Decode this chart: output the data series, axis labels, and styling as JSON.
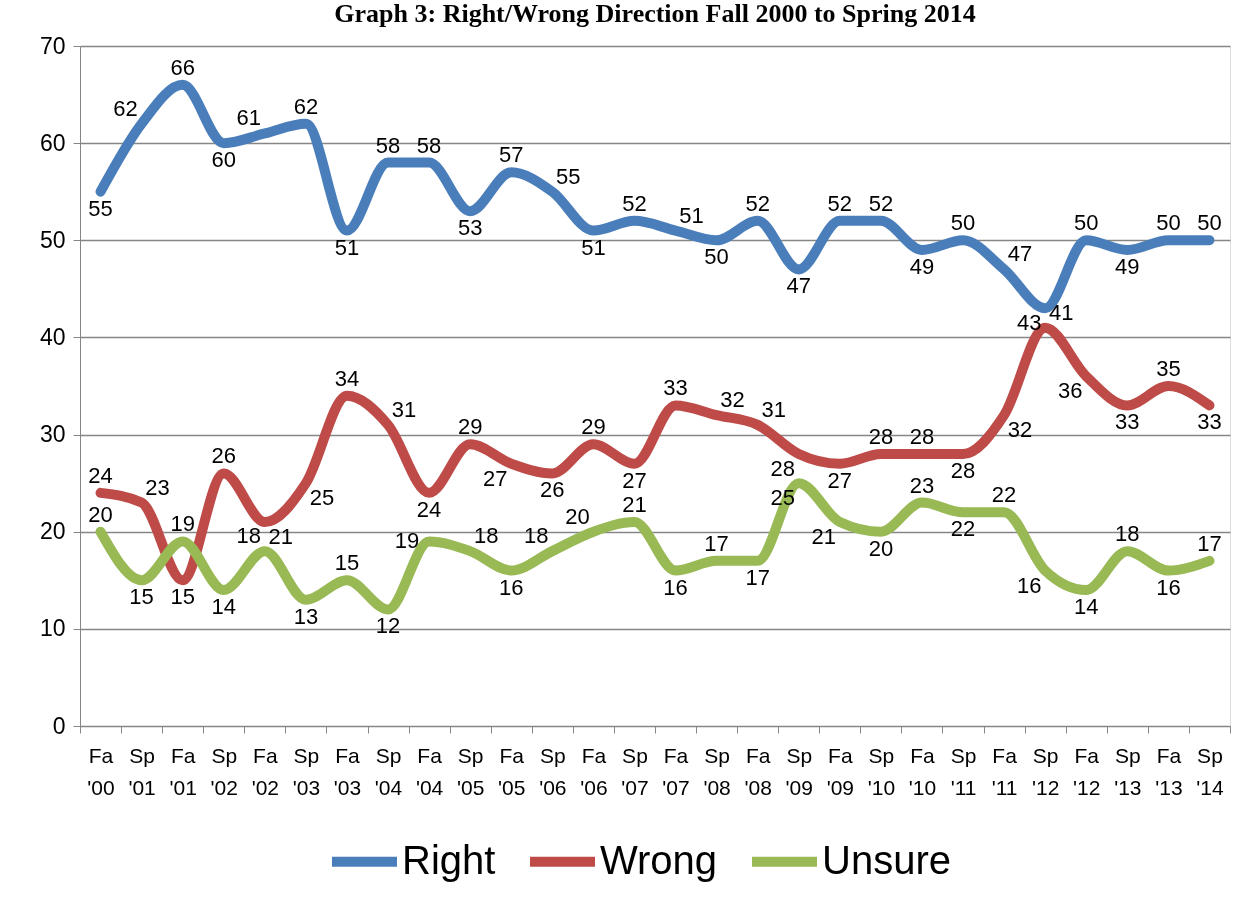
{
  "chart_data": {
    "type": "line",
    "title": "Graph 3: Right/Wrong Direction Fall 2000 to Spring 2014",
    "categories": [
      "Fa '00",
      "Sp '01",
      "Fa '01",
      "Sp '02",
      "Fa '02",
      "Sp '03",
      "Fa '03",
      "Sp '04",
      "Fa '04",
      "Sp '05",
      "Fa '05",
      "Sp '06",
      "Fa '06",
      "Sp '07",
      "Fa '07",
      "Sp '08",
      "Fa '08",
      "Sp '09",
      "Fa '09",
      "Sp '10",
      "Fa '10",
      "Sp '11",
      "Fa '11",
      "Sp '12",
      "Fa '12",
      "Sp '13",
      "Fa '13",
      "Sp '14"
    ],
    "series": [
      {
        "name": "Right",
        "color": "#4a7ebb",
        "values": [
          55,
          62,
          66,
          60,
          61,
          62,
          51,
          58,
          58,
          53,
          57,
          55,
          51,
          52,
          51,
          50,
          52,
          47,
          52,
          52,
          49,
          50,
          47,
          43,
          50,
          49,
          50,
          50
        ]
      },
      {
        "name": "Wrong",
        "color": "#be4b48",
        "values": [
          24,
          23,
          15,
          26,
          21,
          25,
          34,
          31,
          24,
          29,
          27,
          26,
          29,
          27,
          33,
          32,
          31,
          28,
          27,
          28,
          28,
          28,
          32,
          41,
          36,
          33,
          35,
          33
        ]
      },
      {
        "name": "Unsure",
        "color": "#98b954",
        "values": [
          20,
          15,
          19,
          14,
          18,
          13,
          15,
          12,
          19,
          18,
          16,
          18,
          20,
          21,
          16,
          17,
          17,
          25,
          21,
          20,
          23,
          22,
          22,
          16,
          14,
          18,
          16,
          17
        ]
      }
    ],
    "ylim": [
      0,
      70
    ],
    "yticks": [
      0,
      10,
      20,
      30,
      40,
      50,
      60,
      70
    ],
    "grid": "y",
    "legend": "bottom",
    "data_labels": true,
    "line_style": "solid"
  }
}
